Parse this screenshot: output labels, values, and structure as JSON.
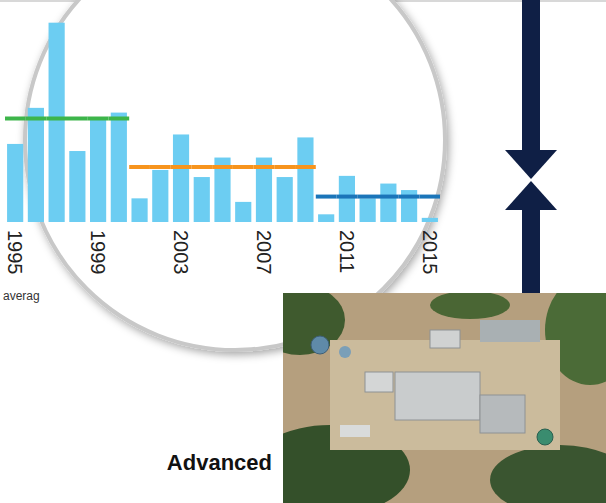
{
  "chart_data": {
    "type": "bar",
    "categories": [
      "1995",
      null,
      null,
      null,
      "1999",
      null,
      null,
      null,
      "2003",
      null,
      null,
      null,
      "2007",
      null,
      null,
      null,
      "2011",
      null,
      null,
      null,
      "2015"
    ],
    "values": [
      132,
      193,
      337,
      120,
      174,
      185,
      40,
      88,
      148,
      76,
      109,
      34,
      109,
      76,
      143,
      13,
      78,
      40,
      65,
      54,
      7
    ],
    "color": "#6ccdf2",
    "ylim": [
      0,
      350
    ],
    "tick_labels": "x",
    "series": [
      {
        "type": "line",
        "line_style": "solid",
        "color": "#3db54a",
        "values": [
          175,
          175,
          175,
          175,
          175,
          175,
          null,
          null,
          null,
          null,
          null,
          null,
          null,
          null,
          null,
          null,
          null,
          null,
          null,
          null,
          null
        ]
      },
      {
        "type": "line",
        "line_style": "solid",
        "color": "#f7941d",
        "values": [
          null,
          null,
          null,
          null,
          null,
          null,
          93,
          93,
          93,
          93,
          93,
          93,
          93,
          93,
          93,
          null,
          null,
          null,
          null,
          null,
          null
        ]
      },
      {
        "type": "line",
        "line_style": "solid",
        "color": "#1b75b9",
        "values": [
          null,
          null,
          null,
          null,
          null,
          null,
          null,
          null,
          null,
          null,
          null,
          null,
          null,
          null,
          null,
          43,
          43,
          43,
          43,
          43,
          43
        ]
      }
    ],
    "annotation": "averag"
  },
  "caption": "Advanced"
}
